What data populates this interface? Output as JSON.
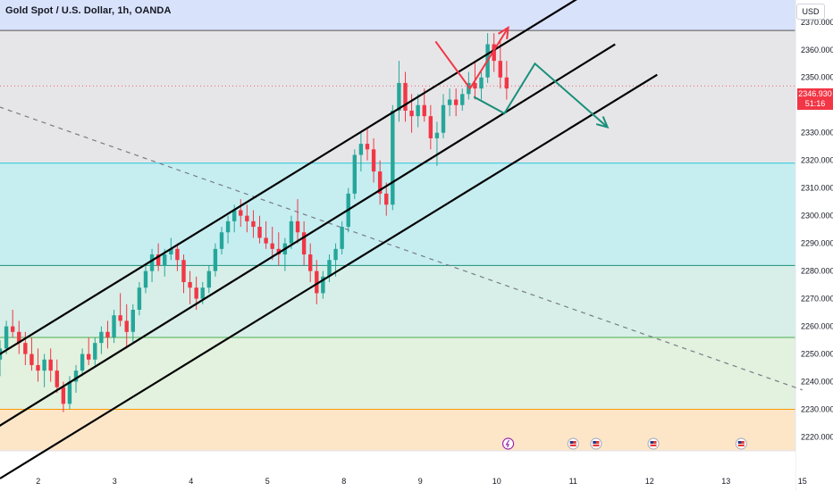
{
  "header": {
    "title": "Gold Spot / U.S. Dollar, 1h, OANDA",
    "currency": "USD"
  },
  "price_tag": {
    "price": "2346.930",
    "countdown": "51:16"
  },
  "colors": {
    "up": "#26a69a",
    "down": "#f23645",
    "zone_top": "#d9e2fb",
    "zone_gray": "#e6e6e8",
    "zone_cyan": "#c6eef1",
    "zone_teal": "#d7efe8",
    "zone_green": "#e3f1df",
    "zone_orange": "#fde6c8",
    "line_top": "#555555",
    "line_cyan": "#26c6da",
    "line_teal": "#1a8f7a",
    "line_green": "#4caf50",
    "line_orange": "#ff9800",
    "channel": "#000000",
    "red_path": "#f23645",
    "teal_path": "#1a8f7a",
    "dashed": "#787b86"
  },
  "icons": [
    "lightning-event-icon",
    "us-flag-event-icon",
    "us-flag-event-icon",
    "us-flag-event-icon",
    "us-flag-event-icon"
  ],
  "chart_data": {
    "type": "candlestick",
    "title": "Gold Spot / U.S. Dollar, 1h, OANDA",
    "ylim": [
      2215,
      2378
    ],
    "y_ticks": [
      "2370.000",
      "2360.000",
      "2350.000",
      "2340.000",
      "2330.000",
      "2320.000",
      "2310.000",
      "2300.000",
      "2290.000",
      "2280.000",
      "2270.000",
      "2260.000",
      "2250.000",
      "2240.000",
      "2230.000",
      "2220.000"
    ],
    "x_ticks": [
      "2",
      "3",
      "4",
      "5",
      "8",
      "9",
      "10",
      "11",
      "12",
      "13",
      "15"
    ],
    "x_tick_pos": [
      0.5,
      1.5,
      2.5,
      3.5,
      4.5,
      5.5,
      6.5,
      7.5,
      8.5,
      9.5,
      10.5
    ],
    "last_price": 2346.93,
    "horizontal_levels": [
      2367.0,
      2319.0,
      2282.0,
      2256.0,
      2230.0
    ],
    "candles": [
      [
        2248,
        2255,
        2242,
        2252
      ],
      [
        2252,
        2262,
        2250,
        2260
      ],
      [
        2260,
        2266,
        2256,
        2258
      ],
      [
        2258,
        2262,
        2250,
        2254
      ],
      [
        2254,
        2258,
        2246,
        2250
      ],
      [
        2250,
        2256,
        2244,
        2246
      ],
      [
        2246,
        2252,
        2240,
        2244
      ],
      [
        2244,
        2250,
        2238,
        2248
      ],
      [
        2248,
        2252,
        2240,
        2244
      ],
      [
        2244,
        2248,
        2236,
        2238
      ],
      [
        2238,
        2240,
        2229,
        2232
      ],
      [
        2232,
        2242,
        2230,
        2240
      ],
      [
        2240,
        2246,
        2236,
        2244
      ],
      [
        2244,
        2252,
        2242,
        2250
      ],
      [
        2250,
        2256,
        2246,
        2248
      ],
      [
        2248,
        2256,
        2246,
        2254
      ],
      [
        2254,
        2260,
        2250,
        2258
      ],
      [
        2258,
        2262,
        2252,
        2256
      ],
      [
        2256,
        2266,
        2254,
        2264
      ],
      [
        2264,
        2272,
        2260,
        2262
      ],
      [
        2262,
        2268,
        2252,
        2258
      ],
      [
        2258,
        2268,
        2254,
        2266
      ],
      [
        2266,
        2276,
        2264,
        2274
      ],
      [
        2274,
        2282,
        2272,
        2280
      ],
      [
        2280,
        2288,
        2276,
        2286
      ],
      [
        2286,
        2290,
        2280,
        2282
      ],
      [
        2282,
        2288,
        2278,
        2286
      ],
      [
        2286,
        2292,
        2284,
        2288
      ],
      [
        2288,
        2290,
        2280,
        2284
      ],
      [
        2284,
        2286,
        2272,
        2276
      ],
      [
        2276,
        2280,
        2268,
        2274
      ],
      [
        2274,
        2278,
        2266,
        2270
      ],
      [
        2270,
        2276,
        2268,
        2274
      ],
      [
        2274,
        2282,
        2272,
        2280
      ],
      [
        2280,
        2290,
        2278,
        2288
      ],
      [
        2288,
        2296,
        2286,
        2294
      ],
      [
        2294,
        2300,
        2290,
        2298
      ],
      [
        2298,
        2304,
        2294,
        2302
      ],
      [
        2302,
        2306,
        2296,
        2300
      ],
      [
        2300,
        2304,
        2294,
        2298
      ],
      [
        2298,
        2302,
        2292,
        2296
      ],
      [
        2296,
        2300,
        2290,
        2292
      ],
      [
        2292,
        2298,
        2288,
        2290
      ],
      [
        2290,
        2296,
        2284,
        2288
      ],
      [
        2288,
        2294,
        2282,
        2286
      ],
      [
        2286,
        2292,
        2280,
        2290
      ],
      [
        2290,
        2300,
        2288,
        2298
      ],
      [
        2298,
        2306,
        2290,
        2294
      ],
      [
        2294,
        2298,
        2282,
        2286
      ],
      [
        2286,
        2290,
        2276,
        2280
      ],
      [
        2280,
        2284,
        2268,
        2272
      ],
      [
        2272,
        2280,
        2270,
        2278
      ],
      [
        2278,
        2286,
        2276,
        2284
      ],
      [
        2284,
        2290,
        2278,
        2288
      ],
      [
        2288,
        2298,
        2286,
        2296
      ],
      [
        2296,
        2310,
        2294,
        2308
      ],
      [
        2308,
        2324,
        2306,
        2322
      ],
      [
        2322,
        2330,
        2316,
        2326
      ],
      [
        2326,
        2332,
        2320,
        2324
      ],
      [
        2324,
        2328,
        2312,
        2316
      ],
      [
        2316,
        2320,
        2304,
        2308
      ],
      [
        2308,
        2312,
        2300,
        2304
      ],
      [
        2304,
        2340,
        2302,
        2338
      ],
      [
        2338,
        2356,
        2334,
        2348
      ],
      [
        2348,
        2352,
        2334,
        2338
      ],
      [
        2338,
        2344,
        2330,
        2336
      ],
      [
        2336,
        2344,
        2332,
        2340
      ],
      [
        2340,
        2346,
        2334,
        2336
      ],
      [
        2336,
        2340,
        2324,
        2328
      ],
      [
        2328,
        2334,
        2318,
        2330
      ],
      [
        2330,
        2344,
        2328,
        2340
      ],
      [
        2340,
        2346,
        2336,
        2342
      ],
      [
        2342,
        2346,
        2336,
        2340
      ],
      [
        2340,
        2346,
        2338,
        2344
      ],
      [
        2344,
        2352,
        2342,
        2348
      ],
      [
        2348,
        2356,
        2342,
        2346
      ],
      [
        2346,
        2352,
        2342,
        2350
      ],
      [
        2350,
        2366,
        2348,
        2362
      ],
      [
        2362,
        2366,
        2352,
        2356
      ],
      [
        2356,
        2364,
        2346,
        2350
      ],
      [
        2350,
        2356,
        2342,
        2346
      ]
    ],
    "channel_lines": [
      [
        [
          -1.0,
          2233.0
        ],
        [
          8.0,
          2386.0
        ]
      ],
      [
        [
          -1.0,
          2207.0
        ],
        [
          8.05,
          2362.0
        ]
      ],
      [
        [
          0.0,
          2205.0
        ],
        [
          8.6,
          2351.0
        ]
      ]
    ],
    "dashed_trend": [
      [
        -1.0,
        2349.0
      ],
      [
        10.5,
        2237.0
      ]
    ],
    "red_projection": [
      [
        5.7,
        2363.0
      ],
      [
        6.15,
        2346.0
      ],
      [
        6.65,
        2368.0
      ]
    ],
    "teal_projection": [
      [
        6.2,
        2343.0
      ],
      [
        6.6,
        2337.0
      ],
      [
        7.0,
        2355.0
      ],
      [
        7.95,
        2332.0
      ]
    ]
  }
}
